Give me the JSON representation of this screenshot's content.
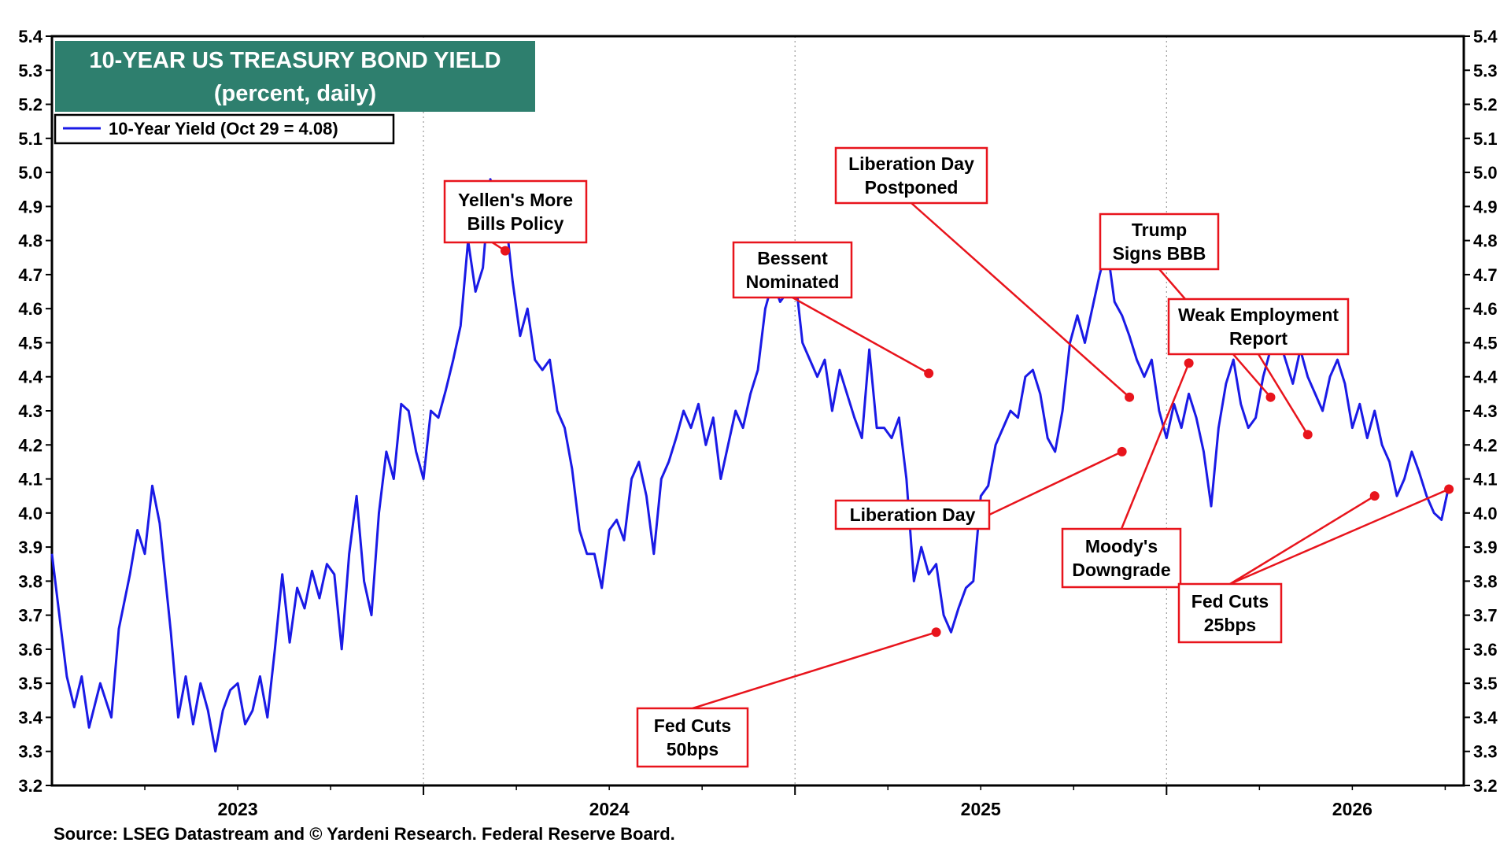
{
  "chart_data": {
    "type": "line",
    "title": "10-YEAR US TREASURY BOND YIELD",
    "subtitle": "(percent, daily)",
    "legend_label": "10-Year Yield (Oct 29 = 4.08)",
    "source": "Source: LSEG Datastream and © Yardeni Research. Federal Reserve Board.",
    "ylim": [
      3.2,
      5.4
    ],
    "yticks": [
      "3.2",
      "3.3",
      "3.4",
      "3.5",
      "3.6",
      "3.7",
      "3.8",
      "3.9",
      "4.0",
      "4.1",
      "4.2",
      "4.3",
      "4.4",
      "4.5",
      "4.6",
      "4.7",
      "4.8",
      "4.9",
      "5.0",
      "5.1",
      "5.2",
      "5.3",
      "5.4"
    ],
    "xlim": [
      2022.5,
      2026.3
    ],
    "xticks": [
      {
        "label": "2023",
        "x": 2023.0
      },
      {
        "label": "2024",
        "x": 2024.0
      },
      {
        "label": "2025",
        "x": 2025.0
      },
      {
        "label": "2026",
        "x": 2026.0
      }
    ],
    "grid": true,
    "colors": {
      "line": "#1a1ae6",
      "title_bg": "#2e7f6e",
      "annotation": "#e8141c"
    },
    "series": [
      {
        "name": "10-Year Yield",
        "points": [
          [
            2022.5,
            3.88
          ],
          [
            2022.52,
            3.7
          ],
          [
            2022.54,
            3.52
          ],
          [
            2022.56,
            3.43
          ],
          [
            2022.58,
            3.52
          ],
          [
            2022.6,
            3.37
          ],
          [
            2022.63,
            3.5
          ],
          [
            2022.66,
            3.4
          ],
          [
            2022.68,
            3.66
          ],
          [
            2022.71,
            3.82
          ],
          [
            2022.73,
            3.95
          ],
          [
            2022.75,
            3.88
          ],
          [
            2022.77,
            4.08
          ],
          [
            2022.79,
            3.97
          ],
          [
            2022.82,
            3.65
          ],
          [
            2022.84,
            3.4
          ],
          [
            2022.86,
            3.52
          ],
          [
            2022.88,
            3.38
          ],
          [
            2022.9,
            3.5
          ],
          [
            2022.92,
            3.42
          ],
          [
            2022.94,
            3.3
          ],
          [
            2022.96,
            3.42
          ],
          [
            2022.98,
            3.48
          ],
          [
            2023.0,
            3.5
          ],
          [
            2023.02,
            3.38
          ],
          [
            2023.04,
            3.42
          ],
          [
            2023.06,
            3.52
          ],
          [
            2023.08,
            3.4
          ],
          [
            2023.1,
            3.6
          ],
          [
            2023.12,
            3.82
          ],
          [
            2023.14,
            3.62
          ],
          [
            2023.16,
            3.78
          ],
          [
            2023.18,
            3.72
          ],
          [
            2023.2,
            3.83
          ],
          [
            2023.22,
            3.75
          ],
          [
            2023.24,
            3.85
          ],
          [
            2023.26,
            3.82
          ],
          [
            2023.28,
            3.6
          ],
          [
            2023.3,
            3.88
          ],
          [
            2023.32,
            4.05
          ],
          [
            2023.34,
            3.8
          ],
          [
            2023.36,
            3.7
          ],
          [
            2023.38,
            4.0
          ],
          [
            2023.4,
            4.18
          ],
          [
            2023.42,
            4.1
          ],
          [
            2023.44,
            4.32
          ],
          [
            2023.46,
            4.3
          ],
          [
            2023.48,
            4.18
          ],
          [
            2023.5,
            4.1
          ],
          [
            2023.52,
            4.3
          ],
          [
            2023.54,
            4.28
          ],
          [
            2023.56,
            4.36
          ],
          [
            2023.58,
            4.45
          ],
          [
            2023.6,
            4.55
          ],
          [
            2023.62,
            4.8
          ],
          [
            2023.64,
            4.65
          ],
          [
            2023.66,
            4.72
          ],
          [
            2023.68,
            4.98
          ],
          [
            2023.7,
            4.87
          ],
          [
            2023.71,
            4.8
          ],
          [
            2023.72,
            4.88
          ],
          [
            2023.74,
            4.68
          ],
          [
            2023.76,
            4.52
          ],
          [
            2023.78,
            4.6
          ],
          [
            2023.8,
            4.45
          ],
          [
            2023.82,
            4.42
          ],
          [
            2023.84,
            4.45
          ],
          [
            2023.86,
            4.3
          ],
          [
            2023.88,
            4.25
          ],
          [
            2023.9,
            4.13
          ],
          [
            2023.92,
            3.95
          ],
          [
            2023.94,
            3.88
          ],
          [
            2023.96,
            3.88
          ],
          [
            2023.98,
            3.78
          ],
          [
            2024.0,
            3.95
          ],
          [
            2024.02,
            3.98
          ],
          [
            2024.04,
            3.92
          ],
          [
            2024.06,
            4.1
          ],
          [
            2024.08,
            4.15
          ],
          [
            2024.1,
            4.05
          ],
          [
            2024.12,
            3.88
          ],
          [
            2024.14,
            4.1
          ],
          [
            2024.16,
            4.15
          ],
          [
            2024.18,
            4.22
          ],
          [
            2024.2,
            4.3
          ],
          [
            2024.22,
            4.25
          ],
          [
            2024.24,
            4.32
          ],
          [
            2024.26,
            4.2
          ],
          [
            2024.28,
            4.28
          ],
          [
            2024.3,
            4.1
          ],
          [
            2024.32,
            4.2
          ],
          [
            2024.34,
            4.3
          ],
          [
            2024.36,
            4.25
          ],
          [
            2024.38,
            4.35
          ],
          [
            2024.4,
            4.42
          ],
          [
            2024.42,
            4.6
          ],
          [
            2024.44,
            4.68
          ],
          [
            2024.46,
            4.62
          ],
          [
            2024.48,
            4.65
          ],
          [
            2024.5,
            4.7
          ],
          [
            2024.52,
            4.5
          ],
          [
            2024.54,
            4.45
          ],
          [
            2024.56,
            4.4
          ],
          [
            2024.58,
            4.45
          ],
          [
            2024.6,
            4.3
          ],
          [
            2024.62,
            4.42
          ],
          [
            2024.64,
            4.35
          ],
          [
            2024.66,
            4.28
          ],
          [
            2024.68,
            4.22
          ],
          [
            2024.7,
            4.48
          ],
          [
            2024.72,
            4.25
          ],
          [
            2024.74,
            4.25
          ],
          [
            2024.76,
            4.22
          ],
          [
            2024.78,
            4.28
          ],
          [
            2024.8,
            4.1
          ],
          [
            2024.82,
            3.8
          ],
          [
            2024.84,
            3.9
          ],
          [
            2024.86,
            3.82
          ],
          [
            2024.88,
            3.85
          ],
          [
            2024.9,
            3.7
          ],
          [
            2024.92,
            3.65
          ],
          [
            2024.94,
            3.72
          ],
          [
            2024.96,
            3.78
          ],
          [
            2024.98,
            3.8
          ],
          [
            2025.0,
            4.05
          ],
          [
            2025.02,
            4.08
          ],
          [
            2025.04,
            4.2
          ],
          [
            2025.06,
            4.25
          ],
          [
            2025.08,
            4.3
          ],
          [
            2025.1,
            4.28
          ],
          [
            2025.12,
            4.4
          ],
          [
            2025.14,
            4.42
          ],
          [
            2025.16,
            4.35
          ],
          [
            2025.18,
            4.22
          ],
          [
            2025.2,
            4.18
          ],
          [
            2025.22,
            4.3
          ],
          [
            2025.24,
            4.5
          ],
          [
            2025.26,
            4.58
          ],
          [
            2025.28,
            4.5
          ],
          [
            2025.3,
            4.6
          ],
          [
            2025.32,
            4.7
          ],
          [
            2025.34,
            4.78
          ],
          [
            2025.36,
            4.62
          ],
          [
            2025.38,
            4.58
          ],
          [
            2025.4,
            4.52
          ],
          [
            2025.42,
            4.45
          ],
          [
            2025.44,
            4.4
          ],
          [
            2025.46,
            4.45
          ],
          [
            2025.48,
            4.3
          ],
          [
            2025.5,
            4.22
          ],
          [
            2025.52,
            4.32
          ],
          [
            2025.54,
            4.25
          ],
          [
            2025.56,
            4.35
          ],
          [
            2025.58,
            4.28
          ],
          [
            2025.6,
            4.18
          ],
          [
            2025.62,
            4.02
          ],
          [
            2025.64,
            4.25
          ],
          [
            2025.66,
            4.38
          ],
          [
            2025.68,
            4.45
          ],
          [
            2025.7,
            4.32
          ],
          [
            2025.72,
            4.25
          ],
          [
            2025.74,
            4.28
          ],
          [
            2025.76,
            4.4
          ],
          [
            2025.78,
            4.48
          ],
          [
            2025.8,
            4.52
          ],
          [
            2025.82,
            4.45
          ],
          [
            2025.84,
            4.38
          ],
          [
            2025.86,
            4.48
          ],
          [
            2025.88,
            4.4
          ],
          [
            2025.9,
            4.35
          ],
          [
            2025.92,
            4.3
          ],
          [
            2025.94,
            4.4
          ],
          [
            2025.96,
            4.45
          ],
          [
            2025.98,
            4.38
          ],
          [
            2026.0,
            4.25
          ],
          [
            2026.02,
            4.32
          ],
          [
            2026.04,
            4.22
          ],
          [
            2026.06,
            4.3
          ],
          [
            2026.08,
            4.2
          ],
          [
            2026.1,
            4.15
          ],
          [
            2026.12,
            4.05
          ],
          [
            2026.14,
            4.1
          ],
          [
            2026.16,
            4.18
          ],
          [
            2026.18,
            4.12
          ],
          [
            2026.2,
            4.05
          ],
          [
            2026.22,
            4.0
          ],
          [
            2026.24,
            3.98
          ],
          [
            2026.26,
            4.08
          ]
        ]
      }
    ],
    "annotations": [
      {
        "label": [
          "Yellen's More",
          "Bills Policy"
        ],
        "point": [
          2023.72,
          4.77
        ]
      },
      {
        "label": [
          "Bessent",
          "Nominated"
        ],
        "point": [
          2024.86,
          4.41
        ]
      },
      {
        "label": [
          "Liberation Day",
          "Postponed"
        ],
        "point": [
          2025.4,
          4.34
        ]
      },
      {
        "label": [
          "Liberation Day"
        ],
        "point": [
          2025.38,
          4.18
        ]
      },
      {
        "label": [
          "Fed Cuts",
          "50bps"
        ],
        "point": [
          2024.88,
          3.65
        ]
      },
      {
        "label": [
          "Trump",
          "Signs BBB"
        ],
        "point": [
          2025.78,
          4.34
        ]
      },
      {
        "label": [
          "Moody's",
          "Downgrade"
        ],
        "point": [
          2025.56,
          4.44
        ]
      },
      {
        "label": [
          "Weak Employment",
          "Report"
        ],
        "point": [
          2025.88,
          4.23
        ]
      },
      {
        "label": [
          "Fed Cuts",
          "25bps"
        ],
        "point": [
          2026.06,
          4.05
        ]
      },
      {
        "label": [],
        "point": [
          2026.26,
          4.07
        ]
      }
    ]
  }
}
